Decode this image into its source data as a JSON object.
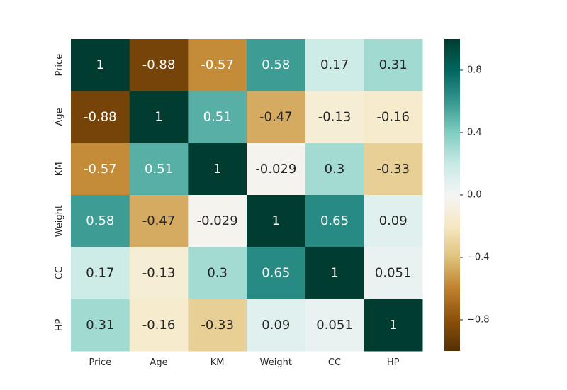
{
  "chart_data": {
    "type": "heatmap",
    "title": "",
    "xlabel": "",
    "ylabel": "",
    "x_categories": [
      "Price",
      "Age",
      "KM",
      "Weight",
      "CC",
      "HP"
    ],
    "y_categories": [
      "Price",
      "Age",
      "KM",
      "Weight",
      "CC",
      "HP"
    ],
    "values": [
      [
        1,
        -0.88,
        -0.57,
        0.58,
        0.17,
        0.31
      ],
      [
        -0.88,
        1,
        0.51,
        -0.47,
        -0.13,
        -0.16
      ],
      [
        -0.57,
        0.51,
        1,
        -0.029,
        0.3,
        -0.33
      ],
      [
        0.58,
        -0.47,
        -0.029,
        1,
        0.65,
        0.09
      ],
      [
        0.17,
        -0.13,
        0.3,
        0.65,
        1,
        0.051
      ],
      [
        0.31,
        -0.16,
        -0.33,
        0.09,
        0.051,
        1
      ]
    ],
    "cell_labels": [
      [
        "1",
        "-0.88",
        "-0.57",
        "0.58",
        "0.17",
        "0.31"
      ],
      [
        "-0.88",
        "1",
        "0.51",
        "-0.47",
        "-0.13",
        "-0.16"
      ],
      [
        "-0.57",
        "0.51",
        "1",
        "-0.029",
        "0.3",
        "-0.33"
      ],
      [
        "0.58",
        "-0.47",
        "-0.029",
        "1",
        "0.65",
        "0.09"
      ],
      [
        "0.17",
        "-0.13",
        "0.3",
        "0.65",
        "1",
        "0.051"
      ],
      [
        "0.31",
        "-0.16",
        "-0.33",
        "0.09",
        "0.051",
        "1"
      ]
    ],
    "colormap": "BrBG",
    "vmin": -1,
    "vmax": 1,
    "colorbar": {
      "ticks": [
        0.8,
        0.4,
        0.0,
        -0.4,
        -0.8
      ],
      "tick_labels": [
        "0.8",
        "0.4",
        "0.0",
        "−0.4",
        "−0.8"
      ]
    },
    "grid": false,
    "legend": "colorbar-right"
  }
}
